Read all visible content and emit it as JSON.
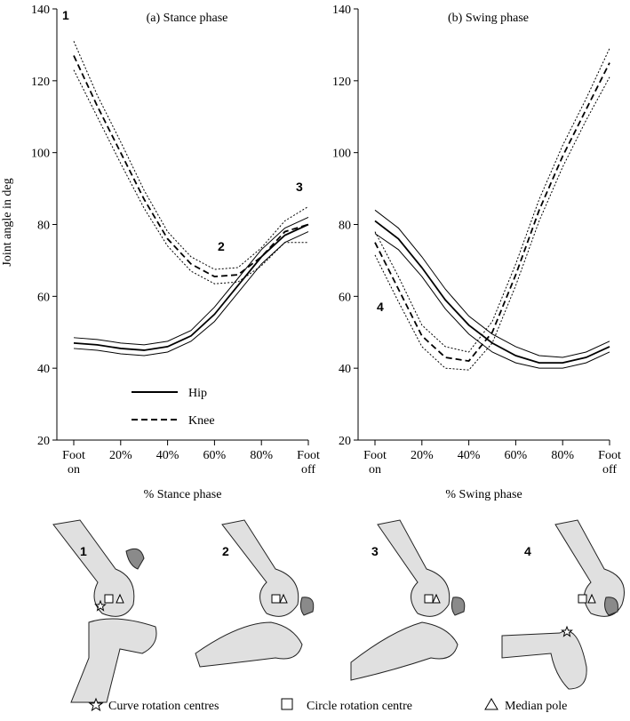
{
  "chart_data": [
    {
      "type": "line",
      "title": "(a)  Stance phase",
      "x_label": "% Stance phase",
      "y_label": "Joint angle in deg",
      "x": [
        0,
        10,
        20,
        30,
        40,
        50,
        60,
        70,
        80,
        90,
        100
      ],
      "xlim": [
        0,
        100
      ],
      "ylim": [
        20,
        140
      ],
      "xticks": [
        {
          "value": 0,
          "label": "Foot on"
        },
        {
          "value": 20,
          "label": "20%"
        },
        {
          "value": 40,
          "label": "40%"
        },
        {
          "value": 60,
          "label": "60%"
        },
        {
          "value": 80,
          "label": "80%"
        },
        {
          "value": 100,
          "label": "Foot off"
        }
      ],
      "yticks": [
        20,
        40,
        60,
        80,
        100,
        120,
        140
      ],
      "legend": "lower-left",
      "series": [
        {
          "name": "Hip",
          "color": "#000000",
          "line_style": "solid",
          "band_style": "solid",
          "values": [
            47,
            46.5,
            45.5,
            45,
            46,
            49,
            55,
            63,
            71,
            77,
            80
          ],
          "lower": [
            45.5,
            45,
            44,
            43.5,
            44.5,
            47.5,
            53,
            61,
            69,
            75,
            78
          ],
          "upper": [
            48.5,
            48,
            47,
            46.5,
            47.5,
            50.5,
            57,
            65,
            73,
            79,
            82
          ]
        },
        {
          "name": "Knee",
          "color": "#000000",
          "line_style": "dashed",
          "band_style": "dotted",
          "values": [
            127,
            113,
            100,
            87,
            76,
            69,
            65.5,
            66,
            71,
            78,
            80
          ],
          "lower": [
            123,
            110,
            97,
            84.5,
            74,
            67,
            63.5,
            64,
            68.5,
            75,
            75
          ],
          "upper": [
            131,
            116,
            103,
            89.5,
            78,
            71,
            67.5,
            68,
            73.5,
            81,
            85
          ]
        }
      ],
      "annotations": [
        "1",
        "2",
        "3"
      ]
    },
    {
      "type": "line",
      "title": "(b)  Swing phase",
      "x_label": "% Swing phase",
      "x": [
        0,
        10,
        20,
        30,
        40,
        50,
        60,
        70,
        80,
        90,
        100
      ],
      "xlim": [
        0,
        100
      ],
      "ylim": [
        20,
        140
      ],
      "xticks": [
        {
          "value": 0,
          "label": "Foot on"
        },
        {
          "value": 20,
          "label": "20%"
        },
        {
          "value": 40,
          "label": "40%"
        },
        {
          "value": 60,
          "label": "60%"
        },
        {
          "value": 80,
          "label": "80%"
        },
        {
          "value": 100,
          "label": "Foot off"
        }
      ],
      "yticks": [
        20,
        40,
        60,
        80,
        100,
        120,
        140
      ],
      "series": [
        {
          "name": "Hip",
          "color": "#000000",
          "line_style": "solid",
          "band_style": "solid",
          "values": [
            81,
            76,
            68,
            59,
            52,
            47,
            43.5,
            41.5,
            41.5,
            43,
            46
          ],
          "lower": [
            77.5,
            73,
            65.5,
            56.5,
            49.5,
            44.5,
            41.5,
            40,
            40,
            41.5,
            44.5
          ],
          "upper": [
            84,
            79,
            71,
            62,
            54.5,
            49.5,
            46,
            43.5,
            43,
            44.5,
            47.5
          ]
        },
        {
          "name": "Knee",
          "color": "#000000",
          "line_style": "dashed",
          "band_style": "dotted",
          "values": [
            75,
            62,
            49,
            43,
            42,
            50,
            66,
            84,
            99,
            112,
            125
          ],
          "lower": [
            71.5,
            58.5,
            46,
            40,
            39.5,
            47,
            63,
            81,
            96,
            109,
            121
          ],
          "upper": [
            78,
            65.5,
            52,
            46,
            44.5,
            53,
            69,
            87,
            102,
            115,
            129
          ]
        }
      ],
      "annotations": [
        "4"
      ]
    }
  ],
  "illustrations": {
    "labels": [
      "1",
      "2",
      "3",
      "4"
    ],
    "legend": [
      "Curve rotation centres",
      "Circle rotation centre",
      "Median pole"
    ]
  }
}
